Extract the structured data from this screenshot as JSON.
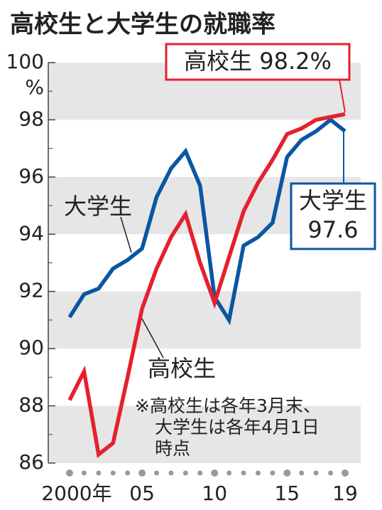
{
  "chart_data": {
    "type": "line",
    "title": "高校生と大学生の就職率",
    "y_unit": "%",
    "categories": [
      "2000年",
      null,
      null,
      null,
      null,
      "05",
      null,
      null,
      null,
      null,
      "10",
      null,
      null,
      null,
      null,
      "15",
      null,
      null,
      null,
      "19"
    ],
    "series": [
      {
        "name": "大学生",
        "color": "#0a56a4",
        "values": [
          91.1,
          91.9,
          92.1,
          92.8,
          93.1,
          93.5,
          95.3,
          96.3,
          96.9,
          95.7,
          91.8,
          91.0,
          93.6,
          93.9,
          94.4,
          96.7,
          97.3,
          97.6,
          98.0,
          97.6
        ]
      },
      {
        "name": "高校生",
        "color": "#e5202e",
        "values": [
          88.2,
          89.2,
          86.3,
          86.7,
          89.0,
          91.4,
          92.8,
          93.9,
          94.7,
          93.0,
          91.6,
          93.2,
          94.8,
          95.8,
          96.6,
          97.5,
          97.7,
          98.0,
          98.1,
          98.2
        ]
      }
    ],
    "callouts": [
      {
        "lines": [
          "高校生 98.2%"
        ]
      },
      {
        "lines": [
          "大学生",
          "97.6"
        ]
      }
    ],
    "note": [
      "※高校生は各年3月末、",
      "大学生は各年4月1日",
      "時点"
    ],
    "ylim": [
      86,
      100
    ],
    "yticks": [
      86,
      88,
      90,
      92,
      94,
      96,
      98,
      100
    ]
  }
}
